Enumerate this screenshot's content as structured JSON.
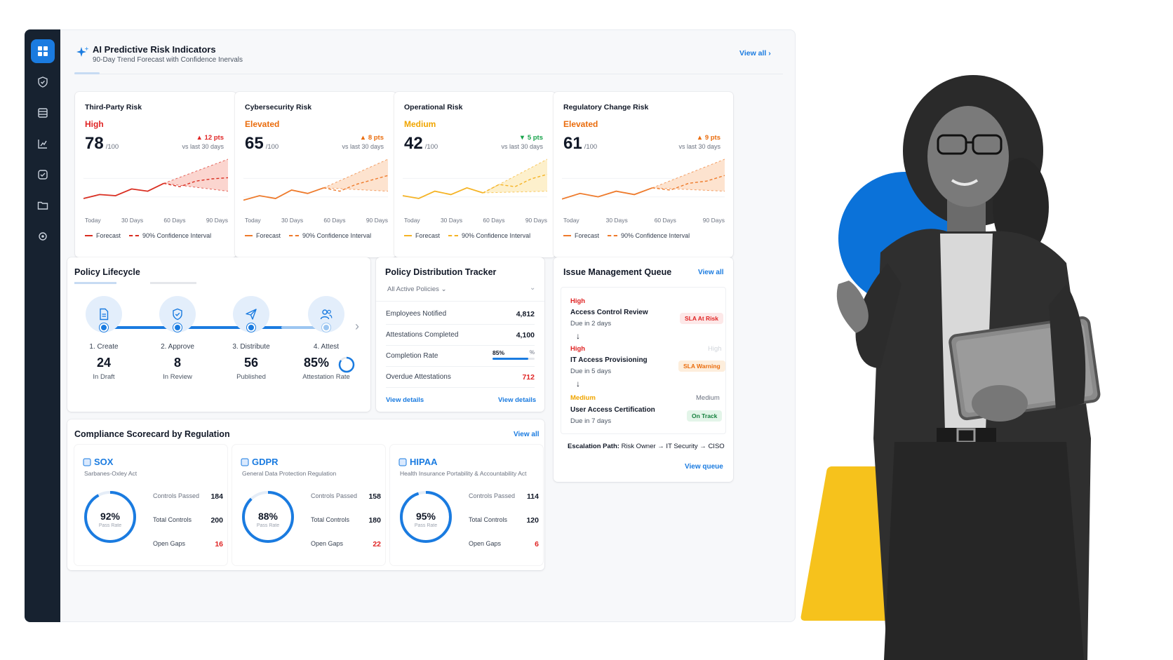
{
  "header": {
    "title": "AI Predictive Risk Indicators",
    "subtitle": "90-Day Trend Forecast with Confidence Inervals",
    "view_all": "View all"
  },
  "sidebar": {
    "items": [
      {
        "icon": "dashboard-icon",
        "active": true
      },
      {
        "icon": "shield-icon"
      },
      {
        "icon": "document-stack-icon"
      },
      {
        "icon": "bar-chart-icon"
      },
      {
        "icon": "check-circle-icon"
      },
      {
        "icon": "folder-icon"
      },
      {
        "icon": "settings-icon"
      }
    ]
  },
  "risk_cards": [
    {
      "title": "Third-Party Risk",
      "level": "High",
      "level_color": "#e02424",
      "score": "78",
      "max": "/100",
      "delta": "▲ 12 pts",
      "delta_color": "#e02424",
      "vs": "vs last 30 days",
      "line_color": "#d92d20",
      "band_color": "#fbd5cf"
    },
    {
      "title": "Cybersecurity Risk",
      "level": "Elevated",
      "level_color": "#ea6c0c",
      "score": "65",
      "max": "/100",
      "delta": "▲ 8 pts",
      "delta_color": "#ea6c0c",
      "vs": "vs last 30 days",
      "line_color": "#ee7a2b",
      "band_color": "#fde3cf"
    },
    {
      "title": "Operational Risk",
      "level": "Medium",
      "level_color": "#f0a500",
      "score": "42",
      "max": "/100",
      "delta": "▼ 5 pts",
      "delta_color": "#16a34a",
      "vs": "vs last 30 days",
      "line_color": "#f5b324",
      "band_color": "#fdf0cc"
    },
    {
      "title": "Regulatory Change Risk",
      "level": "Elevated",
      "level_color": "#ea6c0c",
      "score": "61",
      "max": "/100",
      "delta": "▲ 9 pts",
      "delta_color": "#ea6c0c",
      "vs": "vs last 30 days",
      "line_color": "#ee7a2b",
      "band_color": "#fde3cf"
    }
  ],
  "risk_axis": [
    "Today",
    "30 Days",
    "60 Days",
    "90 Days"
  ],
  "risk_legend": {
    "forecast": "Forecast",
    "ci": "90% Confidence Interval"
  },
  "lifecycle": {
    "title": "Policy Lifecycle",
    "steps": [
      {
        "label": "1. Create",
        "value": "24",
        "sub": "In Draft",
        "icon": "document-icon"
      },
      {
        "label": "2. Approve",
        "value": "8",
        "sub": "In Review",
        "icon": "shield-check-icon"
      },
      {
        "label": "3. Distribute",
        "value": "56",
        "sub": "Published",
        "icon": "send-icon"
      },
      {
        "label": "4. Attest",
        "value": "85%",
        "sub": "Attestation Rate",
        "icon": "users-icon",
        "ring": 0.85
      }
    ]
  },
  "distribution": {
    "title": "Policy Distribution Tracker",
    "filter": "All Active Policies",
    "rows": [
      {
        "label": "Employees Notified",
        "value": "4,812"
      },
      {
        "label": "Attestations Completed",
        "value": "4,100"
      },
      {
        "label": "Completion Rate",
        "value": "85%",
        "suffix": "%",
        "progress": 0.85
      },
      {
        "label": "Overdue Attestations",
        "value": "712",
        "value_color": "#e02424"
      }
    ],
    "left_link": "View details",
    "right_link": "View details"
  },
  "issues": {
    "title": "Issue Management Queue",
    "view_all": "View all",
    "items": [
      {
        "priority": "High",
        "priority_color": "#e02424",
        "name": "Access Control Review",
        "due": "Due in 2 days",
        "badge": "SLA At Risk",
        "badge_color": "#e02424",
        "badge_bg": "#fde8e8"
      },
      {
        "priority": "High",
        "priority_color": "#e02424",
        "name": "IT Access Provisioning",
        "due": "Due in 5 days",
        "badge": "SLA Warning",
        "badge_color": "#ea6c0c",
        "badge_bg": "#fdeedc",
        "faded": "High"
      },
      {
        "priority": "Medium",
        "priority_color": "#f0a500",
        "name": "User Access Certification",
        "due": "Due in 7 days",
        "badge": "On Track",
        "badge_color": "#15803d",
        "badge_bg": "#e3f5e9",
        "faded": "Medium"
      }
    ],
    "escalation_label": "Escalation Path:",
    "escalation_path": "Risk Owner → IT Security → CISO",
    "view_queue": "View queue"
  },
  "scorecard": {
    "title": "Compliance Scorecard by Regulation",
    "view_all": "View all",
    "controls_passed_label": "Controls Passed",
    "total_controls_label": "Total Controls",
    "open_gaps_label": "Open Gaps",
    "pass_rate_label": "Pass Rate",
    "items": [
      {
        "name": "SOX",
        "full": "Sarbanes-Oxley Act",
        "pct": "92%",
        "pass": 0.92,
        "passed": "184",
        "total": "200",
        "gaps": "16"
      },
      {
        "name": "GDPR",
        "full": "General Data Protection Regulation",
        "pct": "88%",
        "pass": 0.88,
        "passed": "158",
        "total": "180",
        "gaps": "22"
      },
      {
        "name": "HIPAA",
        "full": "Health Insurance Portability & Accountability Act",
        "pct": "95%",
        "pass": 0.95,
        "passed": "114",
        "total": "120",
        "gaps": "6"
      }
    ]
  },
  "colors": {
    "accent": "#1a7be0",
    "sidebar": "#172230",
    "danger": "#e02424"
  }
}
